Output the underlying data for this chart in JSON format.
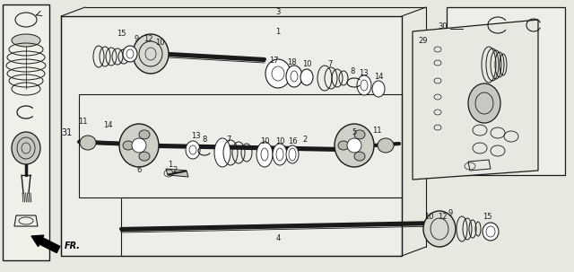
{
  "bg_color": "#f5f5f0",
  "line_color": "#1a1a1a",
  "fig_width": 6.4,
  "fig_height": 3.03,
  "dpi": 100
}
